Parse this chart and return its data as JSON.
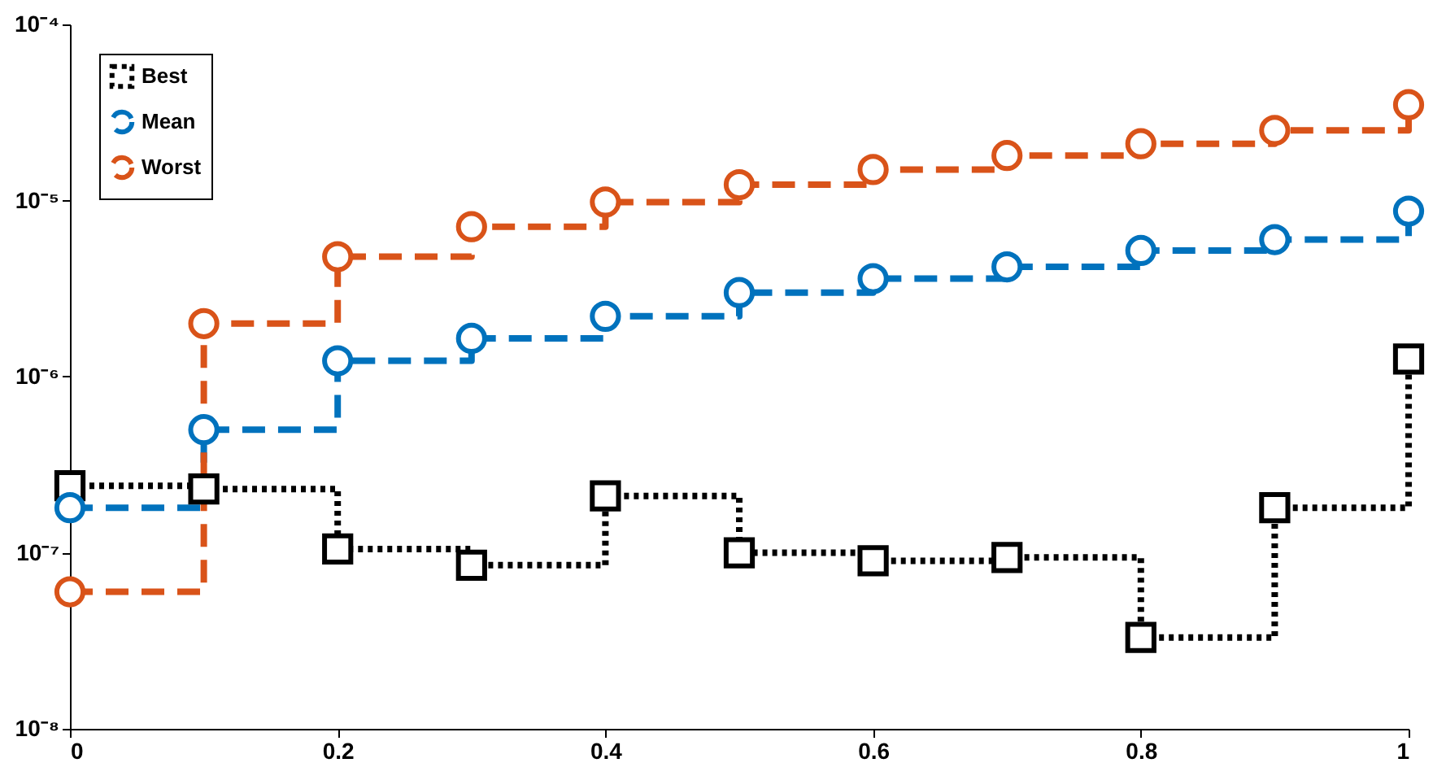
{
  "chart_data": {
    "type": "step",
    "x": [
      0,
      0.1,
      0.2,
      0.3,
      0.4,
      0.5,
      0.6,
      0.7,
      0.8,
      0.9,
      1
    ],
    "series": [
      {
        "name": "Best",
        "color": "#000000",
        "marker": "square",
        "line_style": "dotted",
        "values": [
          2.4e-07,
          2.3e-07,
          1.05e-07,
          8.5e-08,
          2.1e-07,
          1e-07,
          9e-08,
          9.4e-08,
          3.3e-08,
          1.8e-07,
          1.26e-06
        ]
      },
      {
        "name": "Mean",
        "color": "#0072bd",
        "marker": "circle",
        "line_style": "dashed",
        "values": [
          1.8e-07,
          5e-07,
          1.23e-06,
          1.65e-06,
          2.2e-06,
          3e-06,
          3.6e-06,
          4.2e-06,
          5.2e-06,
          6e-06,
          8.7e-06
        ]
      },
      {
        "name": "Worst",
        "color": "#d95319",
        "marker": "circle",
        "line_style": "dashed",
        "values": [
          6e-08,
          2e-06,
          4.8e-06,
          7.1e-06,
          9.8e-06,
          1.23e-05,
          1.5e-05,
          1.8e-05,
          2.1e-05,
          2.5e-05,
          3.5e-05
        ]
      }
    ],
    "log": true,
    "xlim": [
      0,
      1
    ],
    "xticks": [
      0,
      0.2,
      0.4,
      0.6,
      0.8,
      1
    ],
    "ylim": [
      1e-08,
      0.0001
    ],
    "yticks": [
      {
        "value": 1e-08,
        "label": "10⁻⁸"
      },
      {
        "value": 1e-07,
        "label": "10⁻⁷"
      },
      {
        "value": 1e-06,
        "label": "10⁻⁶"
      },
      {
        "value": 1e-05,
        "label": "10⁻⁵"
      },
      {
        "value": 0.0001,
        "label": "10⁻⁴"
      }
    ],
    "grid": false,
    "legend": "top left"
  }
}
